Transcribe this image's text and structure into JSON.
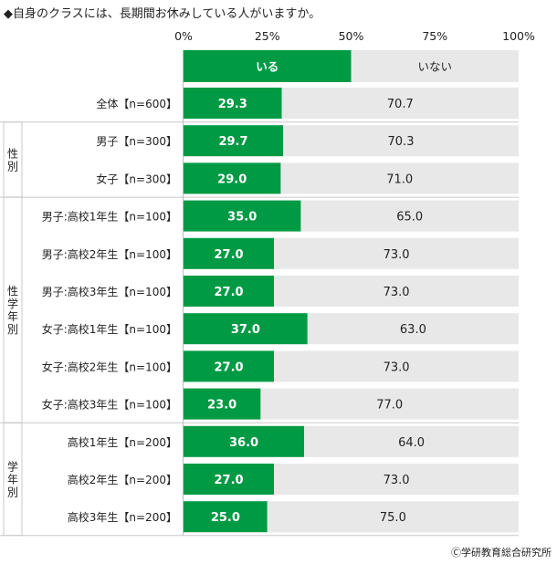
{
  "chart_data": {
    "type": "bar",
    "stacked": true,
    "orientation": "horizontal",
    "title": "◆自身のクラスには、長期間お休みしている人がいますか。",
    "x_ticks": [
      "0%",
      "25%",
      "50%",
      "75%",
      "100%"
    ],
    "xlim": [
      0,
      100
    ],
    "legend": {
      "placement": "top",
      "entries": [
        "いる",
        "いない"
      ]
    },
    "series": [
      {
        "name": "いる",
        "color": "#009a44"
      },
      {
        "name": "いない",
        "color": "#e8e8e8"
      }
    ],
    "groups": [
      {
        "label": "",
        "rows": [
          0
        ]
      },
      {
        "label": "性別",
        "rows": [
          1,
          2
        ]
      },
      {
        "label": "性学年別",
        "rows": [
          3,
          4,
          5,
          6,
          7,
          8
        ]
      },
      {
        "label": "学年別",
        "rows": [
          9,
          10,
          11
        ]
      }
    ],
    "rows": [
      {
        "label": "全体【n=600】",
        "values": [
          29.3,
          70.7
        ],
        "labels": [
          "29.3",
          "70.7"
        ]
      },
      {
        "label": "男子【n=300】",
        "values": [
          29.7,
          70.3
        ],
        "labels": [
          "29.7",
          "70.3"
        ]
      },
      {
        "label": "女子【n=300】",
        "values": [
          29.0,
          71.0
        ],
        "labels": [
          "29.0",
          "71.0"
        ]
      },
      {
        "label": "男子:高校1年生【n=100】",
        "values": [
          35.0,
          65.0
        ],
        "labels": [
          "35.0",
          "65.0"
        ]
      },
      {
        "label": "男子:高校2年生【n=100】",
        "values": [
          27.0,
          73.0
        ],
        "labels": [
          "27.0",
          "73.0"
        ]
      },
      {
        "label": "男子:高校3年生【n=100】",
        "values": [
          27.0,
          73.0
        ],
        "labels": [
          "27.0",
          "73.0"
        ]
      },
      {
        "label": "女子:高校1年生【n=100】",
        "values": [
          37.0,
          63.0
        ],
        "labels": [
          "37.0",
          "63.0"
        ]
      },
      {
        "label": "女子:高校2年生【n=100】",
        "values": [
          27.0,
          73.0
        ],
        "labels": [
          "27.0",
          "73.0"
        ]
      },
      {
        "label": "女子:高校3年生【n=100】",
        "values": [
          23.0,
          77.0
        ],
        "labels": [
          "23.0",
          "77.0"
        ]
      },
      {
        "label": "高校1年生【n=200】",
        "values": [
          36.0,
          64.0
        ],
        "labels": [
          "36.0",
          "64.0"
        ]
      },
      {
        "label": "高校2年生【n=200】",
        "values": [
          27.0,
          73.0
        ],
        "labels": [
          "27.0",
          "73.0"
        ]
      },
      {
        "label": "高校3年生【n=200】",
        "values": [
          25.0,
          75.0
        ],
        "labels": [
          "25.0",
          "75.0"
        ]
      }
    ]
  },
  "credit": "Ⓒ学研教育総合研究所"
}
